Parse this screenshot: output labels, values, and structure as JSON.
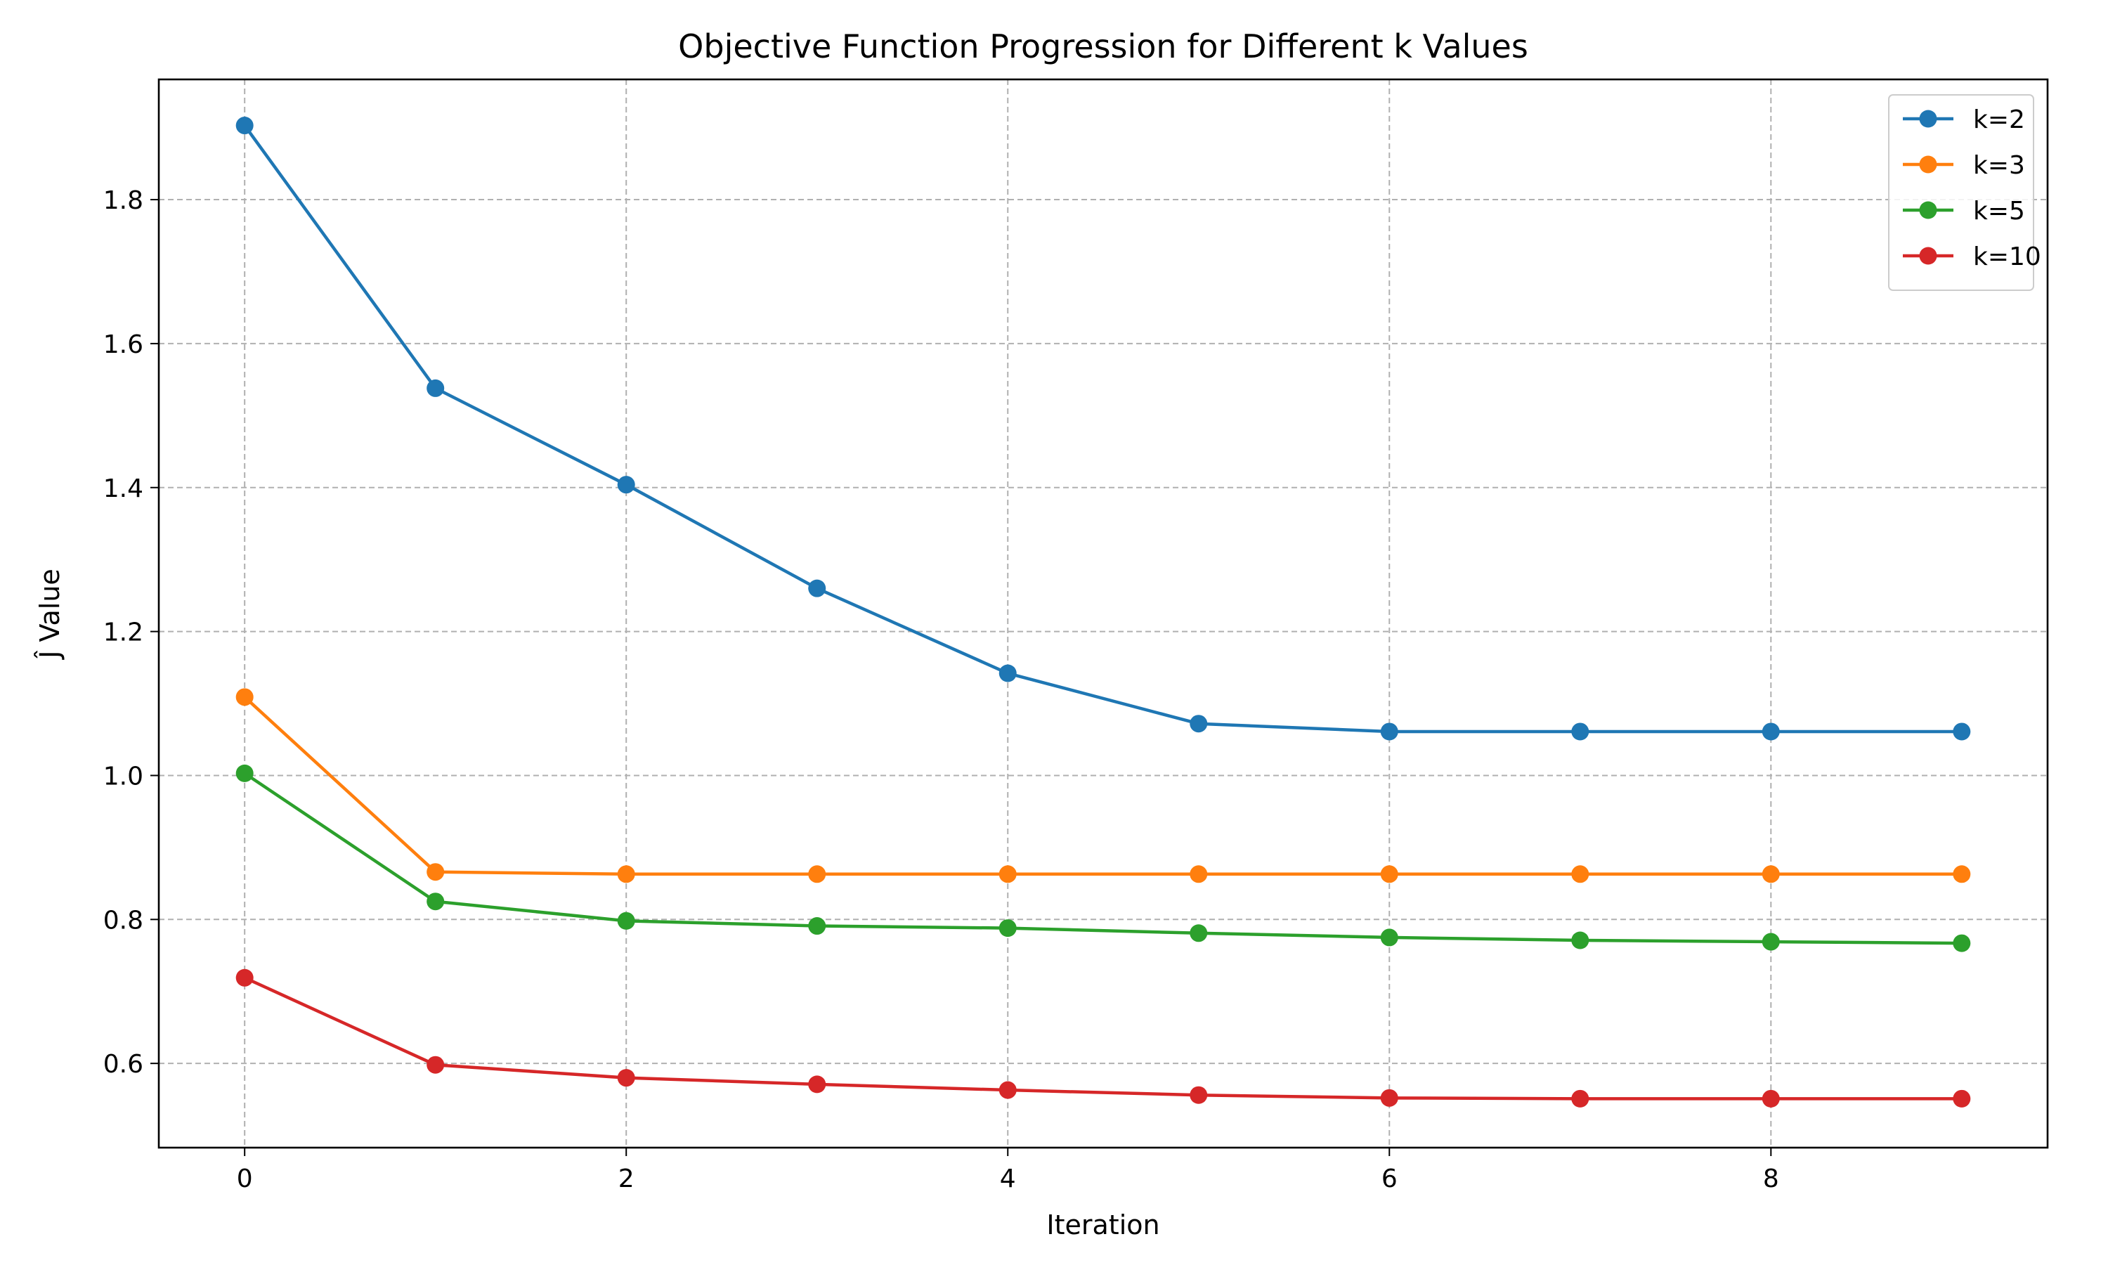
{
  "chart_data": {
    "type": "line",
    "title": "Objective Function Progression for Different k Values",
    "xlabel": "Iteration",
    "ylabel": "Ĵ Value",
    "x": [
      0,
      1,
      2,
      3,
      4,
      5,
      6,
      7,
      8,
      9
    ],
    "xlim": [
      -0.45,
      9.45
    ],
    "ylim": [
      0.483,
      1.967
    ],
    "xticks": [
      0,
      2,
      4,
      6,
      8
    ],
    "yticks": [
      0.6,
      0.8,
      1.0,
      1.2,
      1.4,
      1.6,
      1.8
    ],
    "xtick_labels": [
      "0",
      "2",
      "4",
      "6",
      "8"
    ],
    "ytick_labels": [
      "0.6",
      "0.8",
      "1.0",
      "1.2",
      "1.4",
      "1.6",
      "1.8"
    ],
    "grid": true,
    "legend_position": "upper right",
    "series": [
      {
        "name": "k=2",
        "color": "#1f77b4",
        "values": [
          1.903,
          1.538,
          1.404,
          1.26,
          1.142,
          1.072,
          1.061,
          1.061,
          1.061,
          1.061
        ]
      },
      {
        "name": "k=3",
        "color": "#ff7f0e",
        "values": [
          1.109,
          0.866,
          0.863,
          0.863,
          0.863,
          0.863,
          0.863,
          0.863,
          0.863,
          0.863
        ]
      },
      {
        "name": "k=5",
        "color": "#2ca02c",
        "values": [
          1.003,
          0.825,
          0.798,
          0.791,
          0.788,
          0.781,
          0.775,
          0.771,
          0.769,
          0.767
        ]
      },
      {
        "name": "k=10",
        "color": "#d62728",
        "values": [
          0.719,
          0.598,
          0.58,
          0.571,
          0.563,
          0.556,
          0.552,
          0.551,
          0.551,
          0.551
        ]
      }
    ]
  }
}
